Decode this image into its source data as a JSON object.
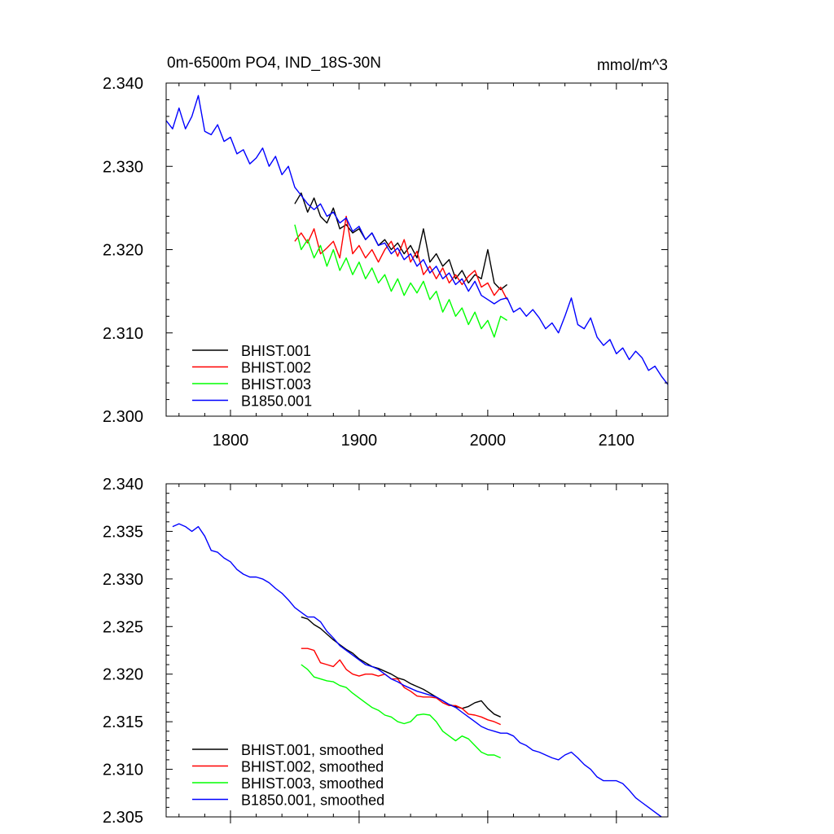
{
  "chart_data": [
    {
      "type": "line",
      "title": "0m-6500m PO4, IND_18S-30N",
      "units": "mmol/m^3",
      "xlim": [
        1750,
        2140
      ],
      "ylim": [
        2.3,
        2.34
      ],
      "xticks": [
        1800,
        1900,
        2000,
        2100
      ],
      "xtick_labels": [
        "1800",
        "1900",
        "2000",
        "2100"
      ],
      "yticks": [
        2.3,
        2.31,
        2.32,
        2.33,
        2.34
      ],
      "ytick_labels": [
        "2.300",
        "2.310",
        "2.320",
        "2.330",
        "2.340"
      ],
      "legend_position": "bottom-left",
      "series": [
        {
          "name": "BHIST.001",
          "color": "#000000",
          "x": [
            1850,
            1855,
            1860,
            1865,
            1870,
            1875,
            1880,
            1885,
            1890,
            1895,
            1900,
            1905,
            1910,
            1915,
            1920,
            1925,
            1930,
            1935,
            1940,
            1945,
            1950,
            1955,
            1960,
            1965,
            1970,
            1975,
            1980,
            1985,
            1990,
            1995,
            2000,
            2005,
            2010,
            2015
          ],
          "y": [
            2.3255,
            2.3268,
            2.3245,
            2.3262,
            2.324,
            2.3232,
            2.325,
            2.3225,
            2.323,
            2.322,
            2.3225,
            2.3212,
            2.322,
            2.3205,
            2.3212,
            2.32,
            2.3208,
            2.3195,
            2.3205,
            2.319,
            2.3225,
            2.3185,
            2.3195,
            2.318,
            2.3188,
            2.3165,
            2.3175,
            2.316,
            2.317,
            2.3165,
            2.32,
            2.316,
            2.3152,
            2.3158
          ]
        },
        {
          "name": "BHIST.002",
          "color": "#ff0000",
          "x": [
            1850,
            1855,
            1860,
            1865,
            1870,
            1875,
            1880,
            1885,
            1890,
            1895,
            1900,
            1905,
            1910,
            1915,
            1920,
            1925,
            1930,
            1935,
            1940,
            1945,
            1950,
            1955,
            1960,
            1965,
            1970,
            1975,
            1980,
            1985,
            1990,
            1995,
            2000,
            2005,
            2010,
            2015
          ],
          "y": [
            2.321,
            2.322,
            2.3208,
            2.3225,
            2.3195,
            2.3202,
            2.321,
            2.319,
            2.324,
            2.3195,
            2.3205,
            2.319,
            2.32,
            2.3185,
            2.32,
            2.321,
            2.3192,
            2.3212,
            2.3185,
            2.3198,
            2.317,
            2.318,
            2.3165,
            2.3178,
            2.316,
            2.317,
            2.3158,
            2.3168,
            2.3175,
            2.3155,
            2.316,
            2.3145,
            2.3155,
            2.314
          ]
        },
        {
          "name": "BHIST.003",
          "color": "#00ff00",
          "x": [
            1850,
            1855,
            1860,
            1865,
            1870,
            1875,
            1880,
            1885,
            1890,
            1895,
            1900,
            1905,
            1910,
            1915,
            1920,
            1925,
            1930,
            1935,
            1940,
            1945,
            1950,
            1955,
            1960,
            1965,
            1970,
            1975,
            1980,
            1985,
            1990,
            1995,
            2000,
            2005,
            2010,
            2015
          ],
          "y": [
            2.323,
            2.32,
            2.3212,
            2.319,
            2.3205,
            2.318,
            2.32,
            2.3175,
            2.319,
            2.317,
            2.3185,
            2.3165,
            2.3178,
            2.316,
            2.317,
            2.315,
            2.3165,
            2.3145,
            2.316,
            2.3148,
            2.3162,
            2.314,
            2.315,
            2.3125,
            2.314,
            2.312,
            2.313,
            2.311,
            2.3125,
            2.3105,
            2.3115,
            2.3095,
            2.312,
            2.3115
          ]
        },
        {
          "name": "B1850.001",
          "color": "#0000ff",
          "x": [
            1750,
            1755,
            1760,
            1765,
            1770,
            1775,
            1780,
            1785,
            1790,
            1795,
            1800,
            1805,
            1810,
            1815,
            1820,
            1825,
            1830,
            1835,
            1840,
            1845,
            1850,
            1855,
            1860,
            1865,
            1870,
            1875,
            1880,
            1885,
            1890,
            1895,
            1900,
            1905,
            1910,
            1915,
            1920,
            1925,
            1930,
            1935,
            1940,
            1945,
            1950,
            1955,
            1960,
            1965,
            1970,
            1975,
            1980,
            1985,
            1990,
            1995,
            2000,
            2005,
            2010,
            2015,
            2020,
            2025,
            2030,
            2035,
            2040,
            2045,
            2050,
            2055,
            2060,
            2065,
            2070,
            2075,
            2080,
            2085,
            2090,
            2095,
            2100,
            2105,
            2110,
            2115,
            2120,
            2125,
            2130,
            2135,
            2140
          ],
          "y": [
            2.3355,
            2.3345,
            2.337,
            2.3345,
            2.336,
            2.3385,
            2.3342,
            2.3338,
            2.335,
            2.333,
            2.3335,
            2.3315,
            2.332,
            2.3303,
            2.331,
            2.3322,
            2.33,
            2.3312,
            2.329,
            2.33,
            2.3275,
            2.3265,
            2.3255,
            2.3248,
            2.3255,
            2.324,
            2.3245,
            2.3232,
            2.3238,
            2.3222,
            2.3228,
            2.3212,
            2.322,
            2.3205,
            2.3208,
            2.3195,
            2.3202,
            2.3188,
            2.3195,
            2.318,
            2.3188,
            2.3172,
            2.318,
            2.3165,
            2.3172,
            2.3158,
            2.3165,
            2.315,
            2.3162,
            2.3145,
            2.314,
            2.3135,
            2.314,
            2.3142,
            2.3125,
            2.313,
            2.312,
            2.3128,
            2.3118,
            2.3105,
            2.3112,
            2.31,
            2.312,
            2.3142,
            2.311,
            2.3105,
            2.3118,
            2.3095,
            2.3085,
            2.3092,
            2.3075,
            2.3082,
            2.3068,
            2.3078,
            2.307,
            2.3055,
            2.306,
            2.3048,
            2.3038
          ]
        }
      ]
    },
    {
      "type": "line",
      "xlim": [
        1750,
        2140
      ],
      "ylim": [
        2.305,
        2.34
      ],
      "xticks": [
        1800,
        1900,
        2000,
        2100
      ],
      "yticks": [
        2.305,
        2.31,
        2.315,
        2.32,
        2.325,
        2.33,
        2.335,
        2.34
      ],
      "ytick_labels": [
        "2.305",
        "2.310",
        "2.315",
        "2.320",
        "2.325",
        "2.330",
        "2.335",
        "2.340"
      ],
      "legend_position": "bottom-left",
      "series": [
        {
          "name": "BHIST.001, smoothed",
          "color": "#000000",
          "x": [
            1855,
            1860,
            1865,
            1870,
            1875,
            1880,
            1885,
            1890,
            1895,
            1900,
            1905,
            1910,
            1915,
            1920,
            1925,
            1930,
            1935,
            1940,
            1945,
            1950,
            1955,
            1960,
            1965,
            1970,
            1975,
            1980,
            1985,
            1990,
            1995,
            2000,
            2005,
            2010
          ],
          "y": [
            2.326,
            2.3258,
            2.3252,
            2.3248,
            2.3242,
            2.3236,
            2.3231,
            2.3226,
            2.3222,
            2.3216,
            2.3212,
            2.3208,
            2.3206,
            2.3203,
            2.32,
            2.3196,
            2.3194,
            2.319,
            2.3187,
            2.3184,
            2.318,
            2.3176,
            2.3172,
            2.3168,
            2.3166,
            2.3164,
            2.3166,
            2.317,
            2.3172,
            2.3164,
            2.3158,
            2.3155
          ]
        },
        {
          "name": "BHIST.002, smoothed",
          "color": "#ff0000",
          "x": [
            1855,
            1860,
            1865,
            1870,
            1875,
            1880,
            1885,
            1890,
            1895,
            1900,
            1905,
            1910,
            1915,
            1920,
            1925,
            1930,
            1935,
            1940,
            1945,
            1950,
            1955,
            1960,
            1965,
            1970,
            1975,
            1980,
            1985,
            1990,
            1995,
            2000,
            2005,
            2010
          ],
          "y": [
            2.3227,
            2.3227,
            2.3225,
            2.3212,
            2.321,
            2.3208,
            2.3215,
            2.3205,
            2.32,
            2.3198,
            2.32,
            2.32,
            2.3198,
            2.32,
            2.3195,
            2.3195,
            2.3186,
            2.3182,
            2.3177,
            2.3176,
            2.3176,
            2.3175,
            2.317,
            2.3167,
            2.3167,
            2.3164,
            2.3158,
            2.3157,
            2.3155,
            2.3152,
            2.315,
            2.3147
          ]
        },
        {
          "name": "BHIST.003, smoothed",
          "color": "#00ff00",
          "x": [
            1855,
            1860,
            1865,
            1870,
            1875,
            1880,
            1885,
            1890,
            1895,
            1900,
            1905,
            1910,
            1915,
            1920,
            1925,
            1930,
            1935,
            1940,
            1945,
            1950,
            1955,
            1960,
            1965,
            1970,
            1975,
            1980,
            1985,
            1990,
            1995,
            2000,
            2005,
            2010
          ],
          "y": [
            2.321,
            2.3205,
            2.3197,
            2.3195,
            2.3193,
            2.3192,
            2.3188,
            2.3186,
            2.318,
            2.3175,
            2.317,
            2.3165,
            2.3162,
            2.3157,
            2.3155,
            2.315,
            2.3148,
            2.315,
            2.3157,
            2.3158,
            2.3157,
            2.315,
            2.314,
            2.3135,
            2.313,
            2.3135,
            2.3132,
            2.3125,
            2.3118,
            2.3115,
            2.3115,
            2.3112
          ]
        },
        {
          "name": "B1850.001, smoothed",
          "color": "#0000ff",
          "x": [
            1755,
            1760,
            1765,
            1770,
            1775,
            1780,
            1785,
            1790,
            1795,
            1800,
            1805,
            1810,
            1815,
            1820,
            1825,
            1830,
            1835,
            1840,
            1845,
            1850,
            1855,
            1860,
            1865,
            1870,
            1875,
            1880,
            1885,
            1890,
            1895,
            1900,
            1905,
            1910,
            1915,
            1920,
            1925,
            1930,
            1935,
            1940,
            1945,
            1950,
            1955,
            1960,
            1965,
            1970,
            1975,
            1980,
            1985,
            1990,
            1995,
            2000,
            2005,
            2010,
            2015,
            2020,
            2025,
            2030,
            2035,
            2040,
            2045,
            2050,
            2055,
            2060,
            2065,
            2070,
            2075,
            2080,
            2085,
            2090,
            2095,
            2100,
            2105,
            2110,
            2115,
            2120,
            2125,
            2130,
            2135
          ],
          "y": [
            2.3355,
            2.3358,
            2.3355,
            2.335,
            2.3355,
            2.3345,
            2.333,
            2.3328,
            2.3322,
            2.3318,
            2.331,
            2.3305,
            2.3302,
            2.3302,
            2.33,
            2.3296,
            2.329,
            2.3285,
            2.3278,
            2.327,
            2.3265,
            2.326,
            2.326,
            2.3255,
            2.3245,
            2.3238,
            2.323,
            2.3225,
            2.322,
            2.3215,
            2.321,
            2.3208,
            2.3205,
            2.32,
            2.3195,
            2.3192,
            2.3188,
            2.3185,
            2.3182,
            2.318,
            2.3178,
            2.3176,
            2.3172,
            2.3168,
            2.3165,
            2.316,
            2.3155,
            2.315,
            2.3145,
            2.3142,
            2.314,
            2.3138,
            2.3138,
            2.3135,
            2.3128,
            2.3125,
            2.312,
            2.3118,
            2.3115,
            2.3112,
            2.311,
            2.3115,
            2.3118,
            2.3112,
            2.3105,
            2.31,
            2.3092,
            2.3088,
            2.3088,
            2.3088,
            2.3085,
            2.3078,
            2.307,
            2.3065,
            2.306,
            2.3055,
            2.305
          ]
        }
      ]
    }
  ]
}
